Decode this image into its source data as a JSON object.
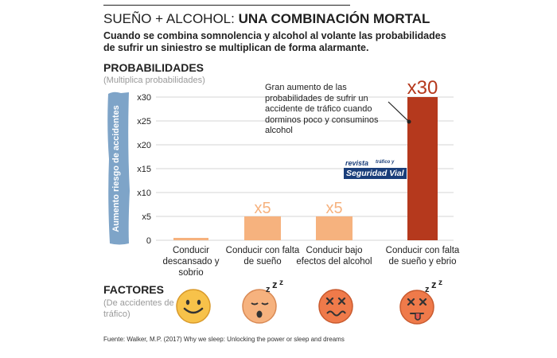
{
  "header": {
    "title_light": "SUEÑO + ALCOHOL:",
    "title_bold": "UNA COMBINACIÓN MORTAL",
    "subtitle": "Cuando se combina somnolencia y alcohol al volante las probabilidades de sufrir un siniestro se multiplican de forma alarmante."
  },
  "probabilidades": {
    "heading": "PROBABILIDADES",
    "subheading": "(Multiplica probabilidades)"
  },
  "factores": {
    "heading": "FACTORES",
    "subheading": "(De accidentes de tráfico)"
  },
  "annotation": "Gran aumento de las probabilidades de sufrir un accidente de tráfico cuando dorminos poco y consuminos alcohol",
  "logo": {
    "line1": "revista",
    "line1b": "tráfico y",
    "line2": "Seguridad Vial"
  },
  "source": "Fuente: Walker, M.P. (2017) Why we sleep: Unlocking the power or sleep and dreams",
  "colors": {
    "peach": "#f6b27e",
    "red": "#b5391d",
    "blue_band": "#7ea4c8",
    "face": "#f7c24a",
    "face_red": "#ef7a4a"
  },
  "faces": [
    "smiley-face-icon",
    "sleepy-face-icon",
    "dizzy-face-icon",
    "drunk-sleepy-face-icon"
  ],
  "chart_data": {
    "type": "bar",
    "ylabel": "Aumento riesgo de accidentes",
    "ylim": [
      0,
      30
    ],
    "yticks": [
      "0",
      "x5",
      "x10",
      "x15",
      "x20",
      "x25",
      "x30"
    ],
    "categories": [
      "Conducir descansado y sobrio",
      "Conducir con falta de sueño",
      "Conducir bajo efectos del alcohol",
      "Conducir con falta de sueño y ebrio"
    ],
    "values": [
      0.5,
      5,
      5,
      30
    ],
    "value_labels": [
      "",
      "x5",
      "x5",
      "x30"
    ],
    "bar_colors": [
      "#f6b27e",
      "#f6b27e",
      "#f6b27e",
      "#b5391d"
    ]
  }
}
